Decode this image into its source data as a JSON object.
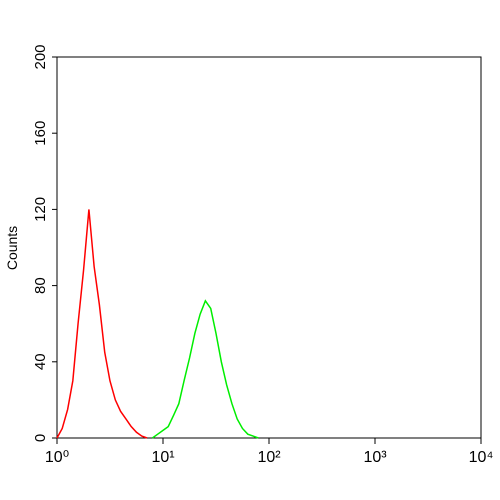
{
  "chart_data": {
    "type": "line",
    "y_label": "Counts",
    "log_x": true,
    "x": [
      1,
      1.12,
      1.26,
      1.41,
      1.58,
      1.78,
      2,
      2.24,
      2.51,
      2.82,
      3.16,
      3.55,
      3.98,
      4.47,
      5.01,
      5.62,
      6.31,
      7.08,
      7.94,
      8.91,
      10,
      11.2,
      12.6,
      14.1,
      15.8,
      17.8,
      20,
      22.4,
      25.1,
      28.2,
      31.6,
      35.5,
      39.8,
      44.7,
      50.1,
      56.2,
      63.1,
      70.8,
      79.4,
      89.1,
      100
    ],
    "series": [
      {
        "color": "#ff0000",
        "values": [
          0,
          5,
          15,
          30,
          60,
          88,
          120,
          90,
          70,
          45,
          30,
          20,
          14,
          10,
          6,
          3,
          1,
          0,
          null,
          null,
          null,
          null,
          null,
          null,
          null,
          null,
          null,
          null,
          null,
          null,
          null,
          null,
          null,
          null,
          null,
          null,
          null,
          null,
          null,
          null,
          null
        ]
      },
      {
        "color": "#00ee00",
        "values": [
          null,
          null,
          null,
          null,
          null,
          null,
          null,
          null,
          null,
          null,
          null,
          null,
          null,
          null,
          null,
          null,
          null,
          null,
          0,
          2,
          4,
          6,
          12,
          18,
          30,
          42,
          55,
          65,
          72,
          68,
          55,
          40,
          28,
          18,
          10,
          5,
          2,
          1,
          0,
          null,
          null
        ]
      }
    ],
    "xlim": [
      1,
      10000
    ],
    "xticks": [
      {
        "value": 1,
        "label": "10⁰"
      },
      {
        "value": 10,
        "label": "10¹"
      },
      {
        "value": 100,
        "label": "10²"
      },
      {
        "value": 1000,
        "label": "10³"
      },
      {
        "value": 10000,
        "label": "10⁴"
      }
    ],
    "ylim": [
      0,
      200
    ],
    "yticks": [
      0,
      40,
      80,
      120,
      160,
      200
    ]
  }
}
